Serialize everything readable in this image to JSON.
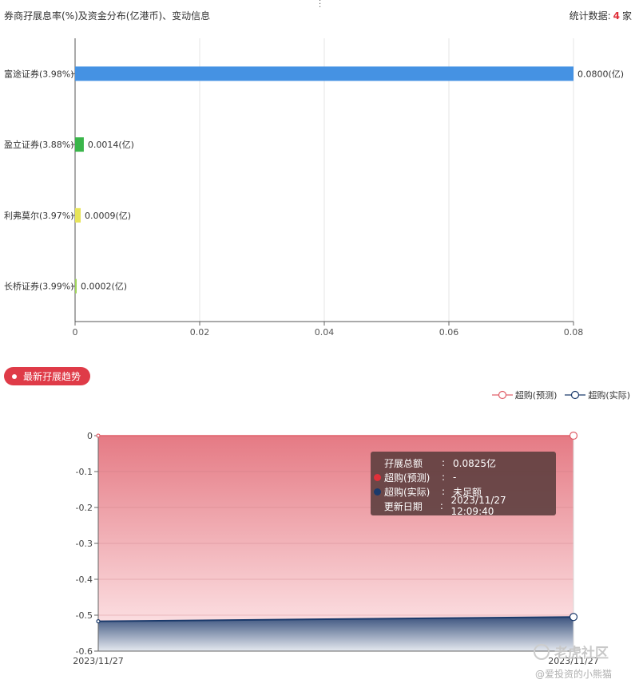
{
  "header": {
    "title": "券商孖展息率(%)及资金分布(亿港币)、变动信息",
    "stat_label": "统计数据:",
    "stat_count": "4",
    "stat_unit": "家"
  },
  "chart_data": [
    {
      "type": "bar",
      "orientation": "horizontal",
      "categories": [
        "富途证券(3.98%)",
        "盈立证券(3.88%)",
        "利弗莫尔(3.97%)",
        "长桥证券(3.99%)"
      ],
      "values": [
        0.08,
        0.0014,
        0.0009,
        0.0002
      ],
      "value_labels": [
        "0.0800(亿)",
        "0.0014(亿)",
        "0.0009(亿)",
        "0.0002(亿)"
      ],
      "colors": [
        "#4592e3",
        "#3ab54a",
        "#e7e45a",
        "#9fd35a"
      ],
      "xlim": [
        0,
        0.08
      ],
      "xticks": [
        "0",
        "0.02",
        "0.04",
        "0.06",
        "0.08"
      ],
      "grid": true
    },
    {
      "type": "area",
      "x": [
        "2023/11/27",
        "2023/11/27"
      ],
      "series": [
        {
          "name": "超购(预测)",
          "values": [
            0,
            0
          ],
          "color": "#e0606a"
        },
        {
          "name": "超购(实际)",
          "values": [
            -0.517,
            -0.505
          ],
          "color": "#1b3a6b"
        }
      ],
      "ylim": [
        -0.6,
        0
      ],
      "yticks": [
        "0",
        "-0.1",
        "-0.2",
        "-0.3",
        "-0.4",
        "-0.5",
        "-0.6"
      ],
      "legend_position": "top-right"
    }
  ],
  "section": {
    "title": "最新孖展趋势"
  },
  "tooltip": {
    "rows": [
      {
        "label": "孖展总额",
        "value": "0.0825亿",
        "dot": ""
      },
      {
        "label": "超购(预测)",
        "value": "-",
        "dot": "#e0303a"
      },
      {
        "label": "超购(实际)",
        "value": "未足额",
        "dot": "#1b3a6b"
      },
      {
        "label": "更新日期",
        "value": "2023/11/27 12:09:40",
        "dot": ""
      }
    ]
  },
  "watermark": {
    "brand": "老虎社区",
    "author": "@爱投资的小熊猫"
  }
}
